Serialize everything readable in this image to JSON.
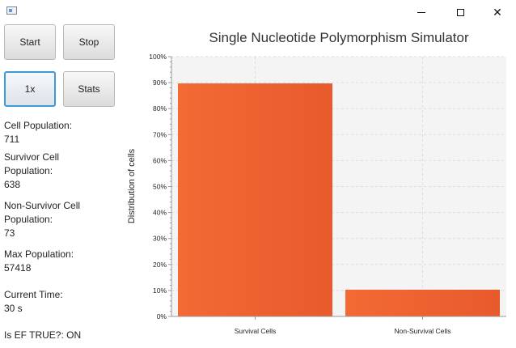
{
  "window": {
    "icon": "app-window-icon",
    "controls": [
      "minimize-icon",
      "maximize-icon",
      "close-icon"
    ]
  },
  "controls": {
    "start_label": "Start",
    "stop_label": "Stop",
    "speed_label": "1x",
    "stats_label": "Stats"
  },
  "info": {
    "cell_population_label": "Cell Population:",
    "cell_population_value": "711",
    "survivor_label_1": "Survivor Cell",
    "survivor_label_2": "Population:",
    "survivor_value": "638",
    "nonsurvivor_label_1": "Non-Survivor Cell",
    "nonsurvivor_label_2": "Population:",
    "nonsurvivor_value": "73",
    "max_population_label": "Max Population:",
    "max_population_value": "57418",
    "current_time_label": "Current Time:",
    "current_time_value": "30 s",
    "ef_label": "Is EF TRUE?: ON"
  },
  "colors": {
    "bar": "#f06030",
    "grid": "#dcdcdc",
    "plot_bg": "#f4f4f4",
    "axis": "#999999"
  },
  "chart_data": {
    "type": "bar",
    "title": "Single Nucleotide Polymorphism Simulator",
    "xlabel": "",
    "ylabel": "Distribution of cells",
    "categories": [
      "Survival Cells",
      "Non-Survival Cells"
    ],
    "values": [
      89.7,
      10.3
    ],
    "ylim": [
      0,
      100
    ],
    "yticks": [
      "0%",
      "10%",
      "20%",
      "30%",
      "40%",
      "50%",
      "60%",
      "70%",
      "80%",
      "90%",
      "100%"
    ],
    "grid": true,
    "legend": "none"
  }
}
